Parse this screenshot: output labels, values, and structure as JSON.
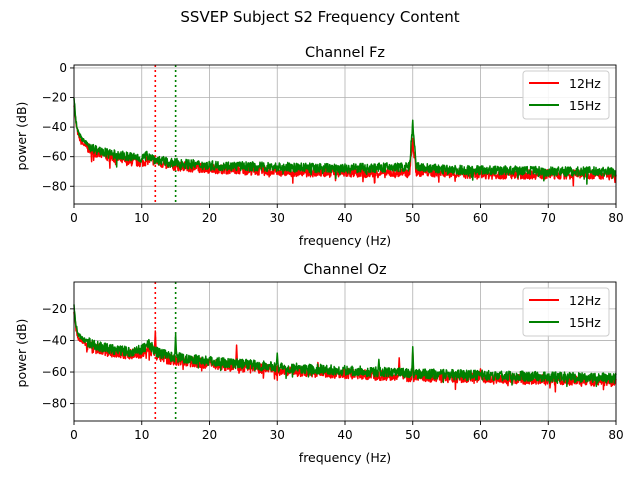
{
  "figure": {
    "suptitle": "SSVEP Subject S2 Frequency Content"
  },
  "colors": {
    "c12": "#ff0000",
    "c15": "#008000",
    "grid": "#b0b0b0"
  },
  "chart_data": [
    {
      "type": "line",
      "title": "Channel Fz",
      "xlabel": "frequency (Hz)",
      "ylabel": "power (dB)",
      "xlim": [
        0,
        80
      ],
      "ylim": [
        -92,
        2
      ],
      "xticks": [
        0,
        10,
        20,
        30,
        40,
        50,
        60,
        70,
        80
      ],
      "yticks": [
        0,
        -20,
        -40,
        -60,
        -80
      ],
      "grid": true,
      "legend": "top-right",
      "vlines": [
        {
          "x": 12,
          "style": "dotted",
          "color": "#ff0000"
        },
        {
          "x": 15,
          "style": "dotted",
          "color": "#008000"
        }
      ],
      "series": [
        {
          "name": "12Hz",
          "color": "#ff0000",
          "x": [
            0,
            0.3,
            0.6,
            1,
            2,
            3,
            5,
            8,
            10,
            11,
            12,
            14,
            20,
            30,
            40,
            49.5,
            50,
            50.5,
            55,
            60,
            70,
            80
          ],
          "values": [
            -24,
            -38,
            -45,
            -50,
            -54,
            -57,
            -60,
            -63,
            -64,
            -62,
            -63,
            -66,
            -68,
            -70,
            -71,
            -71,
            -50,
            -70,
            -71,
            -72,
            -72,
            -72
          ],
          "peaks": []
        },
        {
          "name": "15Hz",
          "color": "#008000",
          "x": [
            0,
            0.3,
            0.6,
            1,
            2,
            3,
            5,
            8,
            10,
            11,
            12,
            14,
            20,
            30,
            40,
            49.5,
            50,
            50.5,
            55,
            60,
            70,
            80
          ],
          "values": [
            -20,
            -36,
            -43,
            -47,
            -52,
            -55,
            -58,
            -60,
            -61,
            -59,
            -62,
            -64,
            -66,
            -67,
            -68,
            -67,
            -38,
            -67,
            -69,
            -69,
            -70,
            -70
          ],
          "peaks": []
        }
      ]
    },
    {
      "type": "line",
      "title": "Channel Oz",
      "xlabel": "frequency (Hz)",
      "ylabel": "power (dB)",
      "xlim": [
        0,
        80
      ],
      "ylim": [
        -91,
        -3
      ],
      "xticks": [
        0,
        10,
        20,
        30,
        40,
        50,
        60,
        70,
        80
      ],
      "yticks": [
        -20,
        -40,
        -60,
        -80
      ],
      "grid": true,
      "legend": "top-right",
      "vlines": [
        {
          "x": 12,
          "style": "dotted",
          "color": "#ff0000"
        },
        {
          "x": 15,
          "style": "dotted",
          "color": "#008000"
        }
      ],
      "series": [
        {
          "name": "12Hz",
          "color": "#ff0000",
          "x": [
            0,
            0.3,
            0.6,
            1,
            2,
            3,
            5,
            8,
            10,
            11,
            12,
            14,
            20,
            30,
            40,
            50,
            60,
            70,
            80
          ],
          "values": [
            -22,
            -33,
            -38,
            -40,
            -43,
            -45,
            -47,
            -49,
            -48,
            -45,
            -49,
            -52,
            -55,
            -59,
            -61,
            -63,
            -64,
            -65,
            -66
          ],
          "peaks": [
            {
              "x": 12,
              "y": -34
            },
            {
              "x": 24,
              "y": -43
            },
            {
              "x": 36,
              "y": -54
            },
            {
              "x": 48,
              "y": -51
            },
            {
              "x": 50,
              "y": -47
            },
            {
              "x": 60,
              "y": -58
            }
          ]
        },
        {
          "name": "15Hz",
          "color": "#008000",
          "x": [
            0,
            0.3,
            0.6,
            1,
            2,
            3,
            5,
            8,
            10,
            11,
            12,
            14,
            20,
            30,
            40,
            50,
            60,
            70,
            80
          ],
          "values": [
            -18,
            -31,
            -36,
            -38,
            -41,
            -43,
            -45,
            -47,
            -46,
            -42,
            -47,
            -50,
            -53,
            -57,
            -59,
            -61,
            -62,
            -63,
            -64
          ],
          "peaks": [
            {
              "x": 15,
              "y": -36
            },
            {
              "x": 30,
              "y": -48
            },
            {
              "x": 45,
              "y": -52
            },
            {
              "x": 50,
              "y": -44
            }
          ]
        }
      ]
    }
  ]
}
